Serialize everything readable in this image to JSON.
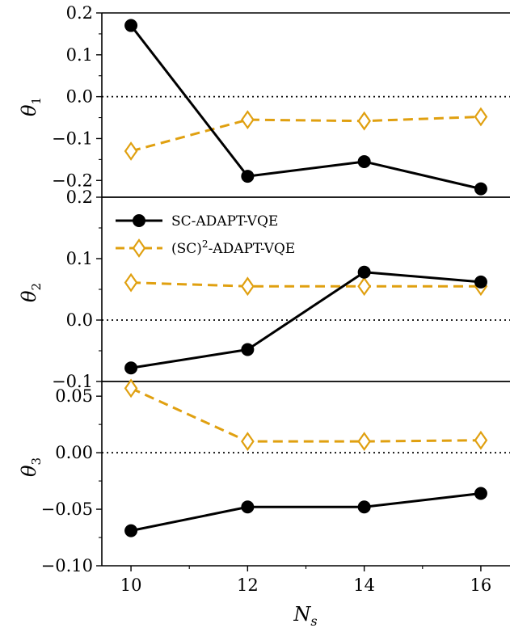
{
  "chart_data": [
    {
      "type": "line",
      "panel": "top",
      "ylabel": "θ1",
      "ylim": [
        -0.24,
        0.2
      ],
      "yticks": [
        0.2,
        0.1,
        0.0,
        -0.1,
        -0.2
      ],
      "ytick_labels": [
        "0.2",
        "0.1",
        "0.0",
        "−0.1",
        "−0.2"
      ],
      "x": [
        10,
        12,
        14,
        16
      ],
      "zero_line": true,
      "series": [
        {
          "name": "SC-ADAPT-VQE",
          "values": [
            0.17,
            -0.19,
            -0.155,
            -0.22
          ],
          "color": "#000000",
          "style": "solid",
          "marker": "circle"
        },
        {
          "name": "(SC)2-ADAPT-VQE",
          "values": [
            -0.13,
            -0.055,
            -0.058,
            -0.048
          ],
          "color": "#E0A010",
          "style": "dashed",
          "marker": "diamond-open"
        }
      ]
    },
    {
      "type": "line",
      "panel": "middle",
      "ylabel": "θ2",
      "ylim": [
        -0.1,
        0.2
      ],
      "yticks": [
        0.2,
        0.1,
        0.0,
        -0.1
      ],
      "ytick_labels": [
        "0.2",
        "0.1",
        "0.0",
        "−0.1"
      ],
      "x": [
        10,
        12,
        14,
        16
      ],
      "zero_line": true,
      "legend": {
        "placement": "upper-left",
        "entries": [
          "SC-ADAPT-VQE",
          "(SC)2-ADAPT-VQE"
        ]
      },
      "series": [
        {
          "name": "SC-ADAPT-VQE",
          "values": [
            -0.078,
            -0.048,
            0.078,
            0.062
          ],
          "color": "#000000",
          "style": "solid",
          "marker": "circle"
        },
        {
          "name": "(SC)2-ADAPT-VQE",
          "values": [
            0.061,
            0.055,
            0.055,
            0.055
          ],
          "color": "#E0A010",
          "style": "dashed",
          "marker": "diamond-open"
        }
      ]
    },
    {
      "type": "line",
      "panel": "bottom",
      "ylabel": "θ3",
      "ylim": [
        -0.1,
        0.063
      ],
      "yticks": [
        0.05,
        0.0,
        -0.05,
        -0.1
      ],
      "ytick_labels": [
        "0.05",
        "0.00",
        "−0.05",
        "−0.10"
      ],
      "x": [
        10,
        12,
        14,
        16
      ],
      "xticks": [
        10,
        12,
        14,
        16
      ],
      "xtick_labels": [
        "10",
        "12",
        "14",
        "16"
      ],
      "xlabel": "Ns",
      "zero_line": true,
      "series": [
        {
          "name": "SC-ADAPT-VQE",
          "values": [
            -0.069,
            -0.048,
            -0.048,
            -0.036
          ],
          "color": "#000000",
          "style": "solid",
          "marker": "circle"
        },
        {
          "name": "(SC)2-ADAPT-VQE",
          "values": [
            0.057,
            0.01,
            0.01,
            0.011
          ],
          "color": "#E0A010",
          "style": "dashed",
          "marker": "diamond-open"
        }
      ]
    }
  ],
  "labels": {
    "theta1_main": "θ",
    "theta1_sub": "1",
    "theta2_main": "θ",
    "theta2_sub": "2",
    "theta3_main": "θ",
    "theta3_sub": "3",
    "x_main": "N",
    "x_sub": "s",
    "legend_sc": "SC-ADAPT-VQE",
    "legend_sc2_pre": "(SC)",
    "legend_sc2_sup": "2",
    "legend_sc2_post": "-ADAPT-VQE"
  }
}
